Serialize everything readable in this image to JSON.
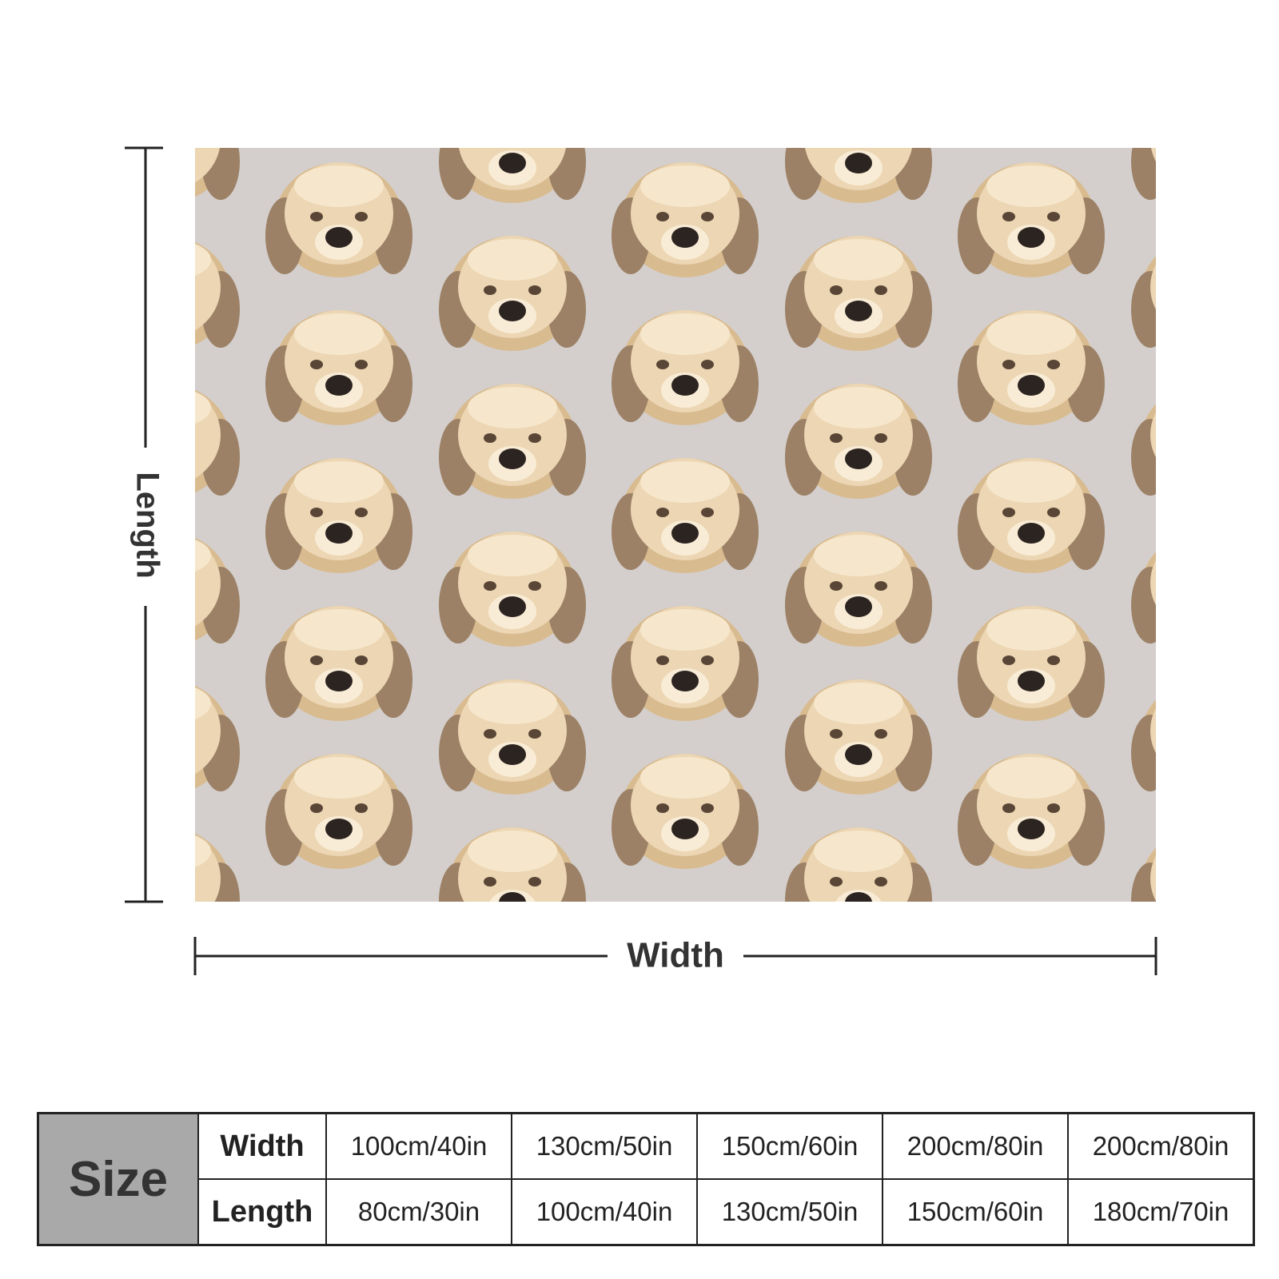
{
  "dimensions": {
    "length_label": "Length",
    "width_label": "Width"
  },
  "size_table": {
    "title": "Size",
    "rows": [
      {
        "label": "Width",
        "values": [
          "100cm/40in",
          "130cm/50in",
          "150cm/60in",
          "200cm/80in",
          "200cm/80in"
        ]
      },
      {
        "label": "Length",
        "values": [
          "80cm/30in",
          "100cm/40in",
          "130cm/50in",
          "150cm/60in",
          "180cm/70in"
        ]
      }
    ]
  }
}
